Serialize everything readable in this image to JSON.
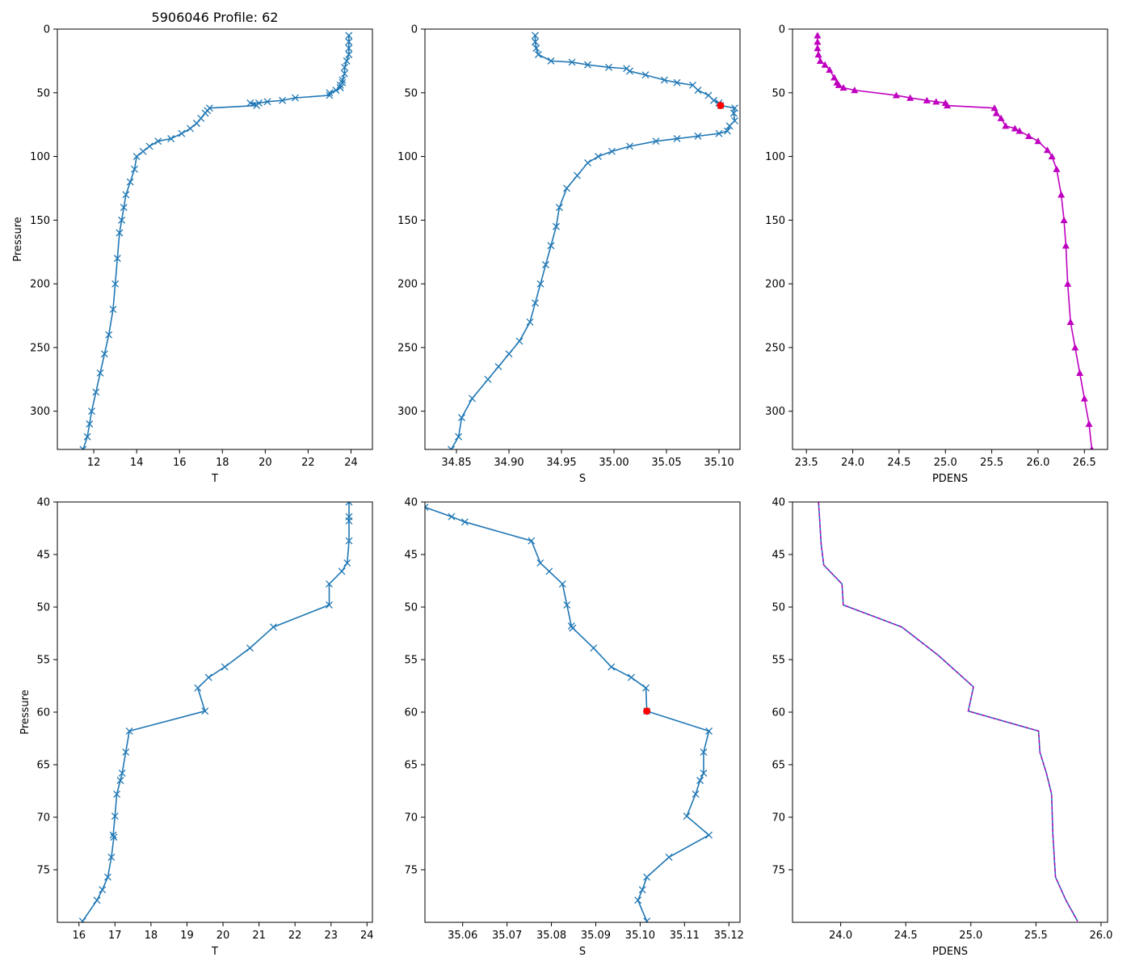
{
  "figure_title": "5906046 Profile: 62",
  "colors": {
    "line": "#1f77b4",
    "pdens": "#bf00bf",
    "highlight": "#ff0000",
    "axis": "#000000"
  },
  "chart_data": [
    {
      "id": "t-full",
      "type": "line",
      "marker": "x",
      "xlabel": "T",
      "ylabel": "Pressure",
      "xlim": [
        10.3,
        25.0
      ],
      "ylim": [
        330,
        0
      ],
      "y_inverted": true,
      "xticks": [
        12,
        14,
        16,
        18,
        20,
        22,
        24
      ],
      "xticklabels": [
        "12",
        "14",
        "16",
        "18",
        "20",
        "22",
        "24"
      ],
      "yticks": [
        0,
        50,
        100,
        150,
        200,
        250,
        300
      ],
      "yticklabels": [
        "0",
        "50",
        "100",
        "150",
        "200",
        "250",
        "300"
      ],
      "series": [
        {
          "name": "T",
          "x": [
            23.9,
            23.9,
            23.9,
            23.9,
            23.8,
            23.7,
            23.7,
            23.6,
            23.6,
            23.5,
            23.5,
            23.3,
            23.0,
            23.0,
            21.4,
            20.8,
            20.1,
            19.7,
            19.3,
            19.6,
            17.4,
            17.3,
            17.2,
            17.0,
            16.8,
            16.5,
            16.1,
            15.6,
            15.0,
            14.6,
            14.3,
            14.0,
            13.9,
            13.7,
            13.5,
            13.4,
            13.3,
            13.2,
            13.1,
            13.0,
            12.9,
            12.7,
            12.5,
            12.3,
            12.1,
            11.9,
            11.8,
            11.7,
            11.5
          ],
          "y": [
            5,
            10,
            15,
            20,
            25,
            30,
            35,
            40,
            42,
            44,
            46,
            48,
            50,
            52,
            54,
            56,
            57,
            58,
            58,
            60,
            62,
            64,
            66,
            70,
            74,
            78,
            82,
            86,
            88,
            92,
            96,
            100,
            110,
            120,
            130,
            140,
            150,
            160,
            180,
            200,
            220,
            240,
            255,
            270,
            285,
            300,
            310,
            320,
            330
          ]
        }
      ]
    },
    {
      "id": "s-full",
      "type": "line",
      "marker": "x",
      "xlabel": "S",
      "ylabel": "",
      "xlim": [
        34.82,
        35.12
      ],
      "ylim": [
        330,
        0
      ],
      "y_inverted": true,
      "xticks": [
        34.85,
        34.9,
        34.95,
        35.0,
        35.05,
        35.1
      ],
      "xticklabels": [
        "34.85",
        "34.90",
        "34.95",
        "35.00",
        "35.05",
        "35.10"
      ],
      "yticks": [
        0,
        50,
        100,
        150,
        200,
        250,
        300
      ],
      "yticklabels": [
        "0",
        "50",
        "100",
        "150",
        "200",
        "250",
        "300"
      ],
      "series": [
        {
          "name": "S",
          "x": [
            34.925,
            34.925,
            34.926,
            34.928,
            34.94,
            34.96,
            34.975,
            34.995,
            35.012,
            35.015,
            35.03,
            35.048,
            35.06,
            35.075,
            35.08,
            35.09,
            35.095,
            35.1,
            35.1015,
            35.115,
            35.114,
            35.115,
            35.11,
            35.108,
            35.1,
            35.08,
            35.06,
            35.04,
            35.015,
            34.998,
            34.985,
            34.975,
            34.965,
            34.955,
            34.948,
            34.945,
            34.94,
            34.935,
            34.93,
            34.925,
            34.92,
            34.91,
            34.9,
            34.89,
            34.88,
            34.865,
            34.855,
            34.852,
            34.845
          ],
          "y": [
            5,
            10,
            15,
            20,
            25,
            26,
            28,
            30,
            31,
            33,
            36,
            40,
            42,
            44,
            48,
            52,
            56,
            58,
            60,
            62,
            66,
            72,
            76,
            80,
            82,
            84,
            86,
            88,
            92,
            96,
            100,
            105,
            115,
            125,
            140,
            155,
            170,
            185,
            200,
            215,
            230,
            245,
            255,
            265,
            275,
            290,
            305,
            320,
            330
          ]
        }
      ],
      "highlight": {
        "x": 35.1015,
        "y": 60
      }
    },
    {
      "id": "pdens-full",
      "type": "line",
      "marker": "triangle",
      "xlabel": "PDENS",
      "ylabel": "",
      "xlim": [
        23.35,
        26.75
      ],
      "ylim": [
        330,
        0
      ],
      "y_inverted": true,
      "xticks": [
        23.5,
        24.0,
        24.5,
        25.0,
        25.5,
        26.0,
        26.5
      ],
      "xticklabels": [
        "23.5",
        "24.0",
        "24.5",
        "25.0",
        "25.5",
        "26.0",
        "26.5"
      ],
      "yticks": [
        0,
        50,
        100,
        150,
        200,
        250,
        300
      ],
      "yticklabels": [
        "0",
        "50",
        "100",
        "150",
        "200",
        "250",
        "300"
      ],
      "series": [
        {
          "name": "PDENS",
          "x": [
            23.62,
            23.62,
            23.62,
            23.63,
            23.65,
            23.7,
            23.75,
            23.8,
            23.83,
            23.85,
            23.9,
            24.02,
            24.47,
            24.62,
            24.8,
            24.9,
            25.0,
            25.02,
            25.53,
            25.55,
            25.6,
            25.65,
            25.75,
            25.8,
            25.9,
            26.0,
            26.1,
            26.15,
            26.2,
            26.25,
            26.28,
            26.3,
            26.32,
            26.35,
            26.4,
            26.45,
            26.5,
            26.55,
            26.58
          ],
          "y": [
            5,
            10,
            15,
            20,
            25,
            28,
            32,
            38,
            42,
            44,
            46,
            48,
            52,
            54,
            56,
            57,
            58,
            60,
            62,
            66,
            70,
            76,
            78,
            80,
            84,
            88,
            95,
            100,
            110,
            130,
            150,
            170,
            200,
            230,
            250,
            270,
            290,
            310,
            330
          ]
        }
      ]
    },
    {
      "id": "t-zoom",
      "type": "line",
      "marker": "x",
      "xlabel": "T",
      "ylabel": "Pressure",
      "xlim": [
        15.4,
        24.15
      ],
      "ylim": [
        80,
        40
      ],
      "y_inverted": true,
      "xticks": [
        16,
        17,
        18,
        19,
        20,
        21,
        22,
        23,
        24
      ],
      "xticklabels": [
        "16",
        "17",
        "18",
        "19",
        "20",
        "21",
        "22",
        "23",
        "24"
      ],
      "yticks": [
        40,
        45,
        50,
        55,
        60,
        65,
        70,
        75
      ],
      "yticklabels": [
        "40",
        "45",
        "50",
        "55",
        "60",
        "65",
        "70",
        "75"
      ],
      "series": [
        {
          "name": "T",
          "x": [
            23.5,
            23.5,
            23.5,
            23.5,
            23.45,
            23.3,
            22.95,
            22.95,
            21.4,
            20.75,
            20.05,
            19.6,
            19.3,
            19.5,
            17.4,
            17.3,
            17.2,
            17.15,
            17.05,
            17.0,
            16.95,
            16.97,
            16.9,
            16.8,
            16.65,
            16.5,
            16.1
          ],
          "y": [
            40,
            41.4,
            41.8,
            43.7,
            45.8,
            46.6,
            47.8,
            49.8,
            51.9,
            53.9,
            55.7,
            56.7,
            57.7,
            59.9,
            61.8,
            63.8,
            65.8,
            66.5,
            67.8,
            69.9,
            71.7,
            71.9,
            73.8,
            75.7,
            76.9,
            77.9,
            79.9
          ]
        }
      ]
    },
    {
      "id": "s-zoom",
      "type": "line",
      "marker": "x",
      "xlabel": "S",
      "ylabel": "",
      "xlim": [
        35.0515,
        35.1225
      ],
      "ylim": [
        80,
        40
      ],
      "y_inverted": true,
      "xticks": [
        35.06,
        35.07,
        35.08,
        35.09,
        35.1,
        35.11,
        35.12
      ],
      "xticklabels": [
        "35.06",
        "35.07",
        "35.08",
        "35.09",
        "35.10",
        "35.11",
        "35.12"
      ],
      "yticks": [
        40,
        45,
        50,
        55,
        60,
        65,
        70,
        75
      ],
      "yticklabels": [
        "40",
        "45",
        "50",
        "55",
        "60",
        "65",
        "70",
        "75"
      ],
      "series": [
        {
          "name": "S",
          "x": [
            35.0515,
            35.0575,
            35.0605,
            35.0755,
            35.0775,
            35.0795,
            35.0825,
            35.0835,
            35.0845,
            35.0848,
            35.0895,
            35.0935,
            35.098,
            35.1013,
            35.1015,
            35.1155,
            35.1143,
            35.1143,
            35.1135,
            35.1125,
            35.1105,
            35.1155,
            35.1065,
            35.1015,
            35.1005,
            35.0995,
            35.1015
          ],
          "y": [
            40.5,
            41.4,
            41.9,
            43.7,
            45.8,
            46.6,
            47.8,
            49.8,
            51.8,
            52.0,
            53.9,
            55.7,
            56.7,
            57.7,
            59.9,
            61.8,
            63.8,
            65.8,
            66.5,
            67.8,
            69.9,
            71.7,
            73.8,
            75.7,
            76.9,
            77.9,
            79.9
          ]
        }
      ],
      "highlight": {
        "x": 35.1015,
        "y": 59.9
      }
    },
    {
      "id": "pdens-zoom",
      "type": "line",
      "marker": "none",
      "xlabel": "PDENS",
      "ylabel": "",
      "xlim": [
        23.63,
        26.05
      ],
      "ylim": [
        80,
        40
      ],
      "y_inverted": true,
      "xticks": [
        24.0,
        24.5,
        25.0,
        25.5,
        26.0
      ],
      "xticklabels": [
        "24.0",
        "24.5",
        "25.0",
        "25.5",
        "26.0"
      ],
      "yticks": [
        40,
        45,
        50,
        55,
        60,
        65,
        70,
        75
      ],
      "yticklabels": [
        "40",
        "45",
        "50",
        "55",
        "60",
        "65",
        "70",
        "75"
      ],
      "series": [
        {
          "name": "PDENS",
          "x": [
            23.83,
            23.84,
            23.85,
            23.87,
            24.01,
            24.02,
            24.47,
            24.75,
            25.02,
            24.98,
            25.52,
            25.53,
            25.58,
            25.62,
            25.63,
            25.65,
            25.73,
            25.82
          ],
          "y": [
            40,
            42,
            44,
            46,
            47.8,
            49.8,
            51.9,
            54.6,
            57.6,
            59.9,
            61.8,
            63.8,
            65.8,
            67.8,
            71.7,
            75.7,
            77.9,
            79.9
          ]
        }
      ],
      "overlay_pdens": true
    }
  ]
}
